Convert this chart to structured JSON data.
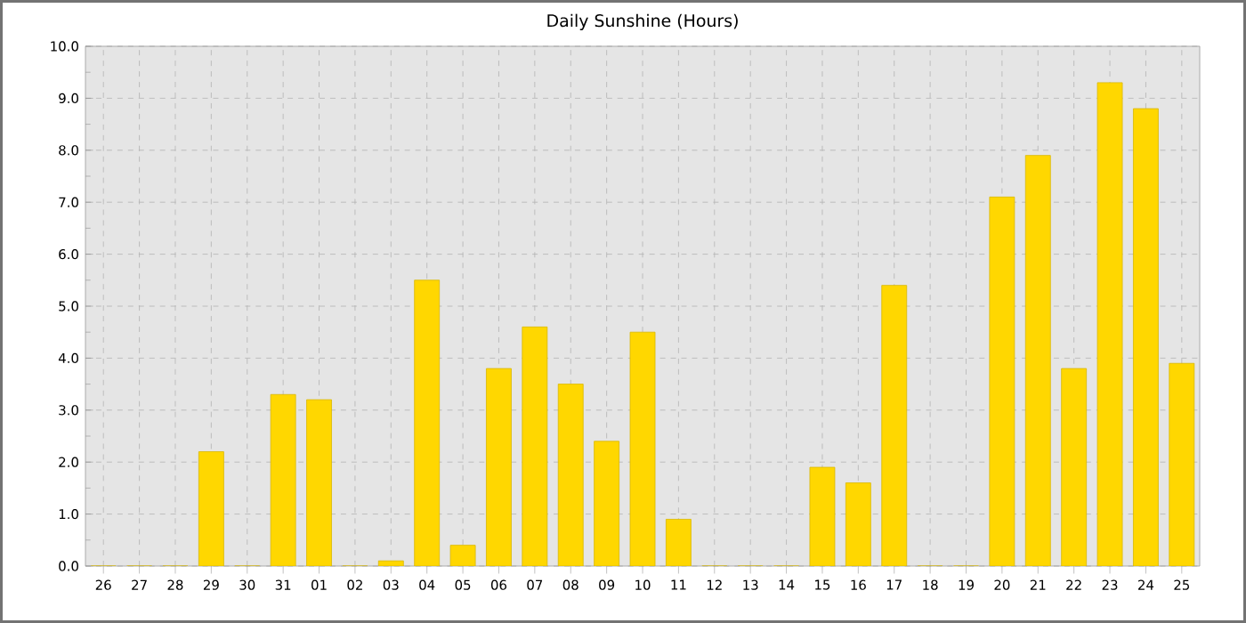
{
  "chart_data": {
    "type": "bar",
    "title": "Daily Sunshine (Hours)",
    "categories": [
      "26",
      "27",
      "28",
      "29",
      "30",
      "31",
      "01",
      "02",
      "03",
      "04",
      "05",
      "06",
      "07",
      "08",
      "09",
      "10",
      "11",
      "12",
      "13",
      "14",
      "15",
      "16",
      "17",
      "18",
      "19",
      "20",
      "21",
      "22",
      "23",
      "24",
      "25"
    ],
    "values": [
      0,
      0,
      0,
      2.2,
      0,
      3.3,
      3.2,
      0,
      0.1,
      5.5,
      0.4,
      3.8,
      4.6,
      3.5,
      2.4,
      4.5,
      0.9,
      0,
      0,
      0,
      1.9,
      1.6,
      5.4,
      0,
      0,
      7.1,
      7.9,
      3.8,
      9.3,
      8.8,
      3.9
    ],
    "color": "#ffd700",
    "ylim": [
      0,
      10
    ],
    "yticks": [
      {
        "value": 0,
        "label": "0.0"
      },
      {
        "value": 1,
        "label": "1.0"
      },
      {
        "value": 2,
        "label": "2.0"
      },
      {
        "value": 3,
        "label": "3.0"
      },
      {
        "value": 4,
        "label": "4.0"
      },
      {
        "value": 5,
        "label": "5.0"
      },
      {
        "value": 6,
        "label": "6.0"
      },
      {
        "value": 7,
        "label": "7.0"
      },
      {
        "value": 8,
        "label": "8.0"
      },
      {
        "value": 9,
        "label": "9.0"
      },
      {
        "value": 10,
        "label": "10.0"
      }
    ],
    "grid": true
  }
}
